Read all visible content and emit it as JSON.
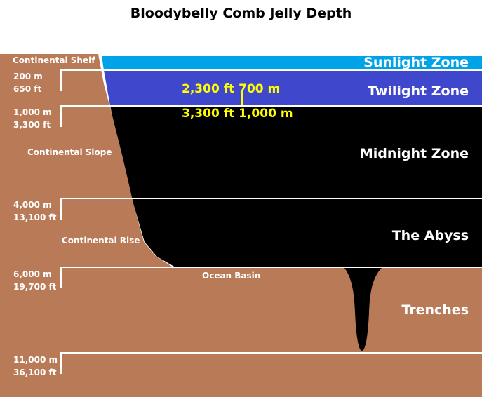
{
  "title": "Bloodybelly Comb Jelly Depth",
  "zones": {
    "sunlight": "Sunlight Zone",
    "twilight": "Twilight Zone",
    "midnight": "Midnight Zone",
    "abyss": "The Abyss",
    "trenches": "Trenches"
  },
  "depths": [
    {
      "m": "200 m",
      "ft": "650 ft"
    },
    {
      "m": "1,000 m",
      "ft": "3,300 ft"
    },
    {
      "m": "4,000 m",
      "ft": "13,100 ft"
    },
    {
      "m": "6,000 m",
      "ft": "19,700 ft"
    },
    {
      "m": "11,000 m",
      "ft": "36,100 ft"
    }
  ],
  "features": {
    "shelf": "Continental Shelf",
    "slope": "Continental Slope",
    "rise": "Continental Rise",
    "basin": "Ocean Basin"
  },
  "jelly_range": {
    "top": "2,300 ft  700 m",
    "bottom": "3,300 ft  1,000 m"
  },
  "colors": {
    "land": "#b97a57",
    "sunlight": "#00a2e8",
    "twilight": "#3f48cc",
    "deep": "#000000",
    "zone_label_light": "#ffffff",
    "range_marker": "#ffff00"
  }
}
